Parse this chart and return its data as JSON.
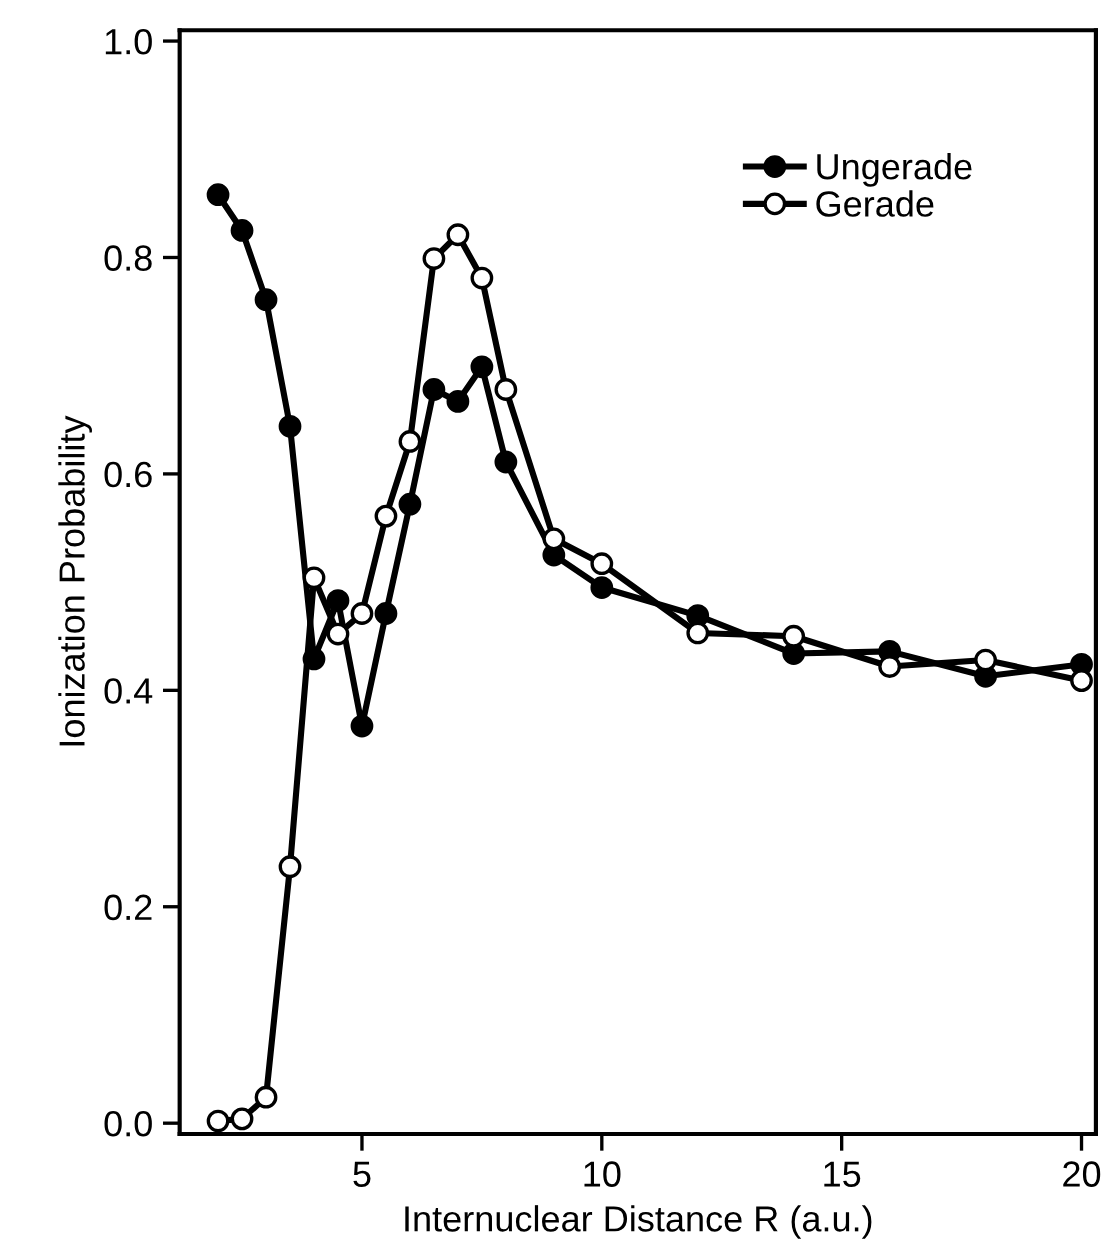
{
  "chart_data": {
    "type": "line",
    "xlabel": "Internuclear Distance R (a.u.)",
    "ylabel": "Ionization Probability",
    "xlim": [
      1.2,
      20.3
    ],
    "ylim": [
      -0.01,
      1.01
    ],
    "xticks": [
      5,
      10,
      15,
      20
    ],
    "yticks": [
      {
        "value": 0,
        "label": "0.0"
      },
      0.2,
      0.4,
      0.6,
      0.8,
      {
        "value": 1,
        "label": "1.0"
      }
    ],
    "grid": false,
    "legend": "top right",
    "line_style": "solid",
    "series": [
      {
        "name": "Ungerade",
        "color": "#000000",
        "marker": "circle",
        "x": [
          2,
          2.5,
          3,
          3.5,
          4,
          4.5,
          5,
          5.5,
          6,
          6.5,
          7,
          7.5,
          8,
          9,
          10,
          12,
          14,
          16,
          18,
          20
        ],
        "values": [
          0.858,
          0.825,
          0.761,
          0.644,
          0.429,
          0.483,
          0.367,
          0.471,
          0.572,
          0.678,
          0.667,
          0.699,
          0.611,
          0.525,
          0.495,
          0.469,
          0.434,
          0.436,
          0.413,
          0.424
        ]
      },
      {
        "name": "Gerade",
        "color": "#000000",
        "marker": "circle",
        "x": [
          2,
          2.5,
          3,
          3.5,
          4,
          4.5,
          5,
          5.5,
          6,
          6.5,
          7,
          7.5,
          8,
          9,
          10,
          12,
          14,
          16,
          18,
          20
        ],
        "values": [
          0.002,
          0.004,
          0.024,
          0.237,
          0.504,
          0.452,
          0.471,
          0.561,
          0.63,
          0.799,
          0.821,
          0.781,
          0.678,
          0.54,
          0.517,
          0.453,
          0.45,
          0.422,
          0.428,
          0.409
        ]
      }
    ]
  }
}
